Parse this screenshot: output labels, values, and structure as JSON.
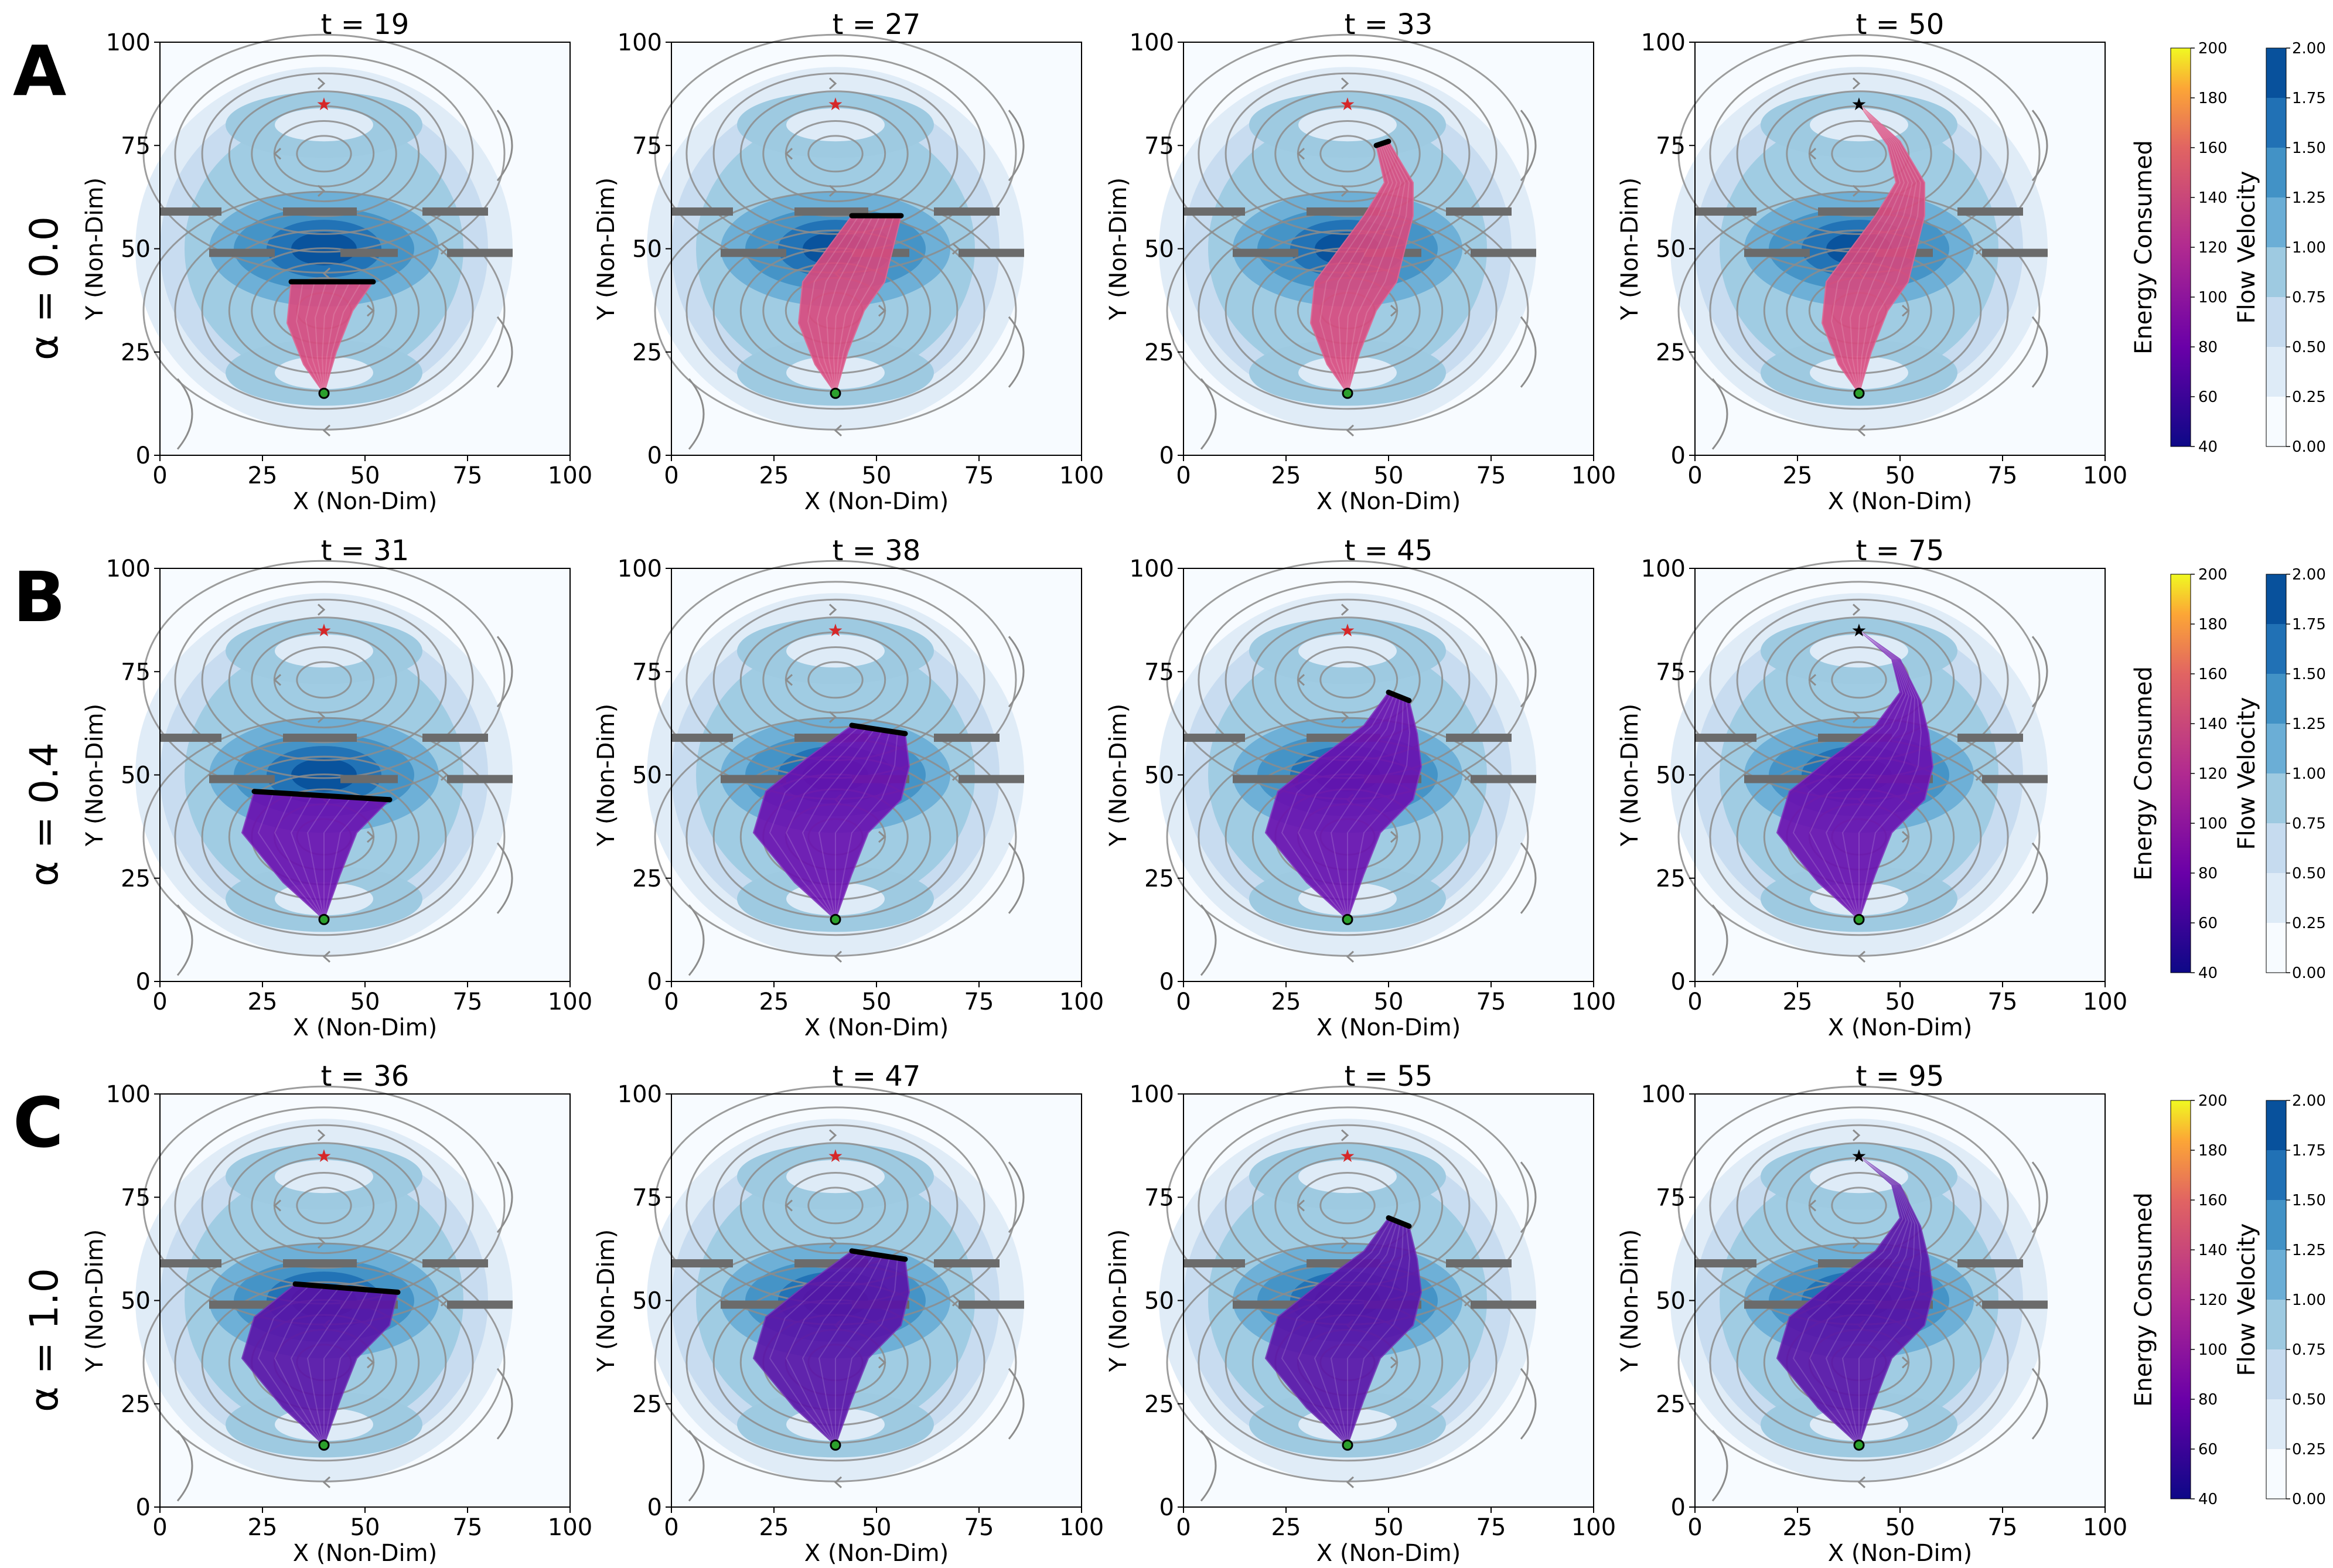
{
  "figure": {
    "axis_xlabel": "X (Non-Dim)",
    "axis_ylabel": "Y (Non-Dim)",
    "tick_labels": [
      "0",
      "25",
      "50",
      "75",
      "100"
    ],
    "colors": {
      "flow_levels": [
        "#f7fbff",
        "#deebf7",
        "#c6dbef",
        "#9ecae1",
        "#6baed6",
        "#4292c6",
        "#2171b5",
        "#08519c"
      ],
      "streamline": "#8c8c8c",
      "obstacle": "#6b6b6b",
      "frontier": "#000000",
      "start_marker": "#2ca02c",
      "goal_marker": "#d62728"
    }
  },
  "rows": [
    {
      "letter": "A",
      "alpha_label": "α = 0.0",
      "traj_color": "#d94a7f",
      "panels": [
        {
          "title": "t = 19"
        },
        {
          "title": "t = 27"
        },
        {
          "title": "t = 33"
        },
        {
          "title": "t = 50"
        }
      ]
    },
    {
      "letter": "B",
      "alpha_label": "α = 0.4",
      "traj_color": "#6a0fb0",
      "panels": [
        {
          "title": "t = 31"
        },
        {
          "title": "t = 38"
        },
        {
          "title": "t = 45"
        },
        {
          "title": "t = 75"
        }
      ]
    },
    {
      "letter": "C",
      "alpha_label": "α = 1.0",
      "traj_color": "#5a12a8",
      "panels": [
        {
          "title": "t = 36"
        },
        {
          "title": "t = 47"
        },
        {
          "title": "t = 55"
        },
        {
          "title": "t = 95"
        }
      ]
    }
  ],
  "colorbars": {
    "energy": {
      "label": "Energy Consumed",
      "ticks": [
        "40",
        "60",
        "80",
        "100",
        "120",
        "140",
        "160",
        "180",
        "200"
      ]
    },
    "flow": {
      "label": "Flow  Velocity",
      "ticks": [
        "0.00",
        "0.25",
        "0.50",
        "0.75",
        "1.00",
        "1.25",
        "1.50",
        "1.75",
        "2.00"
      ]
    }
  },
  "chart_data": {
    "type": "heatmap",
    "xlabel": "X (Non-Dim)",
    "ylabel": "Y (Non-Dim)",
    "xlim": [
      0,
      100
    ],
    "ylim": [
      0,
      100
    ],
    "start": {
      "x": 40,
      "y": 15
    },
    "goal": {
      "x": 40,
      "y": 85
    },
    "flow_velocity_range": [
      0.0,
      2.0
    ],
    "energy_range": [
      40,
      200
    ],
    "panels": [
      {
        "row": "A",
        "alpha": 0.0,
        "t": 19,
        "progress": 0.38
      },
      {
        "row": "A",
        "alpha": 0.0,
        "t": 27,
        "progress": 0.62
      },
      {
        "row": "A",
        "alpha": 0.0,
        "t": 33,
        "progress": 0.84
      },
      {
        "row": "A",
        "alpha": 0.0,
        "t": 50,
        "progress": 1.0
      },
      {
        "row": "B",
        "alpha": 0.4,
        "t": 31,
        "progress": 0.42
      },
      {
        "row": "B",
        "alpha": 0.4,
        "t": 38,
        "progress": 0.6
      },
      {
        "row": "B",
        "alpha": 0.4,
        "t": 45,
        "progress": 0.8
      },
      {
        "row": "B",
        "alpha": 0.4,
        "t": 75,
        "progress": 1.0
      },
      {
        "row": "C",
        "alpha": 1.0,
        "t": 36,
        "progress": 0.45
      },
      {
        "row": "C",
        "alpha": 1.0,
        "t": 47,
        "progress": 0.62
      },
      {
        "row": "C",
        "alpha": 1.0,
        "t": 55,
        "progress": 0.8
      },
      {
        "row": "C",
        "alpha": 1.0,
        "t": 95,
        "progress": 1.0
      }
    ]
  }
}
